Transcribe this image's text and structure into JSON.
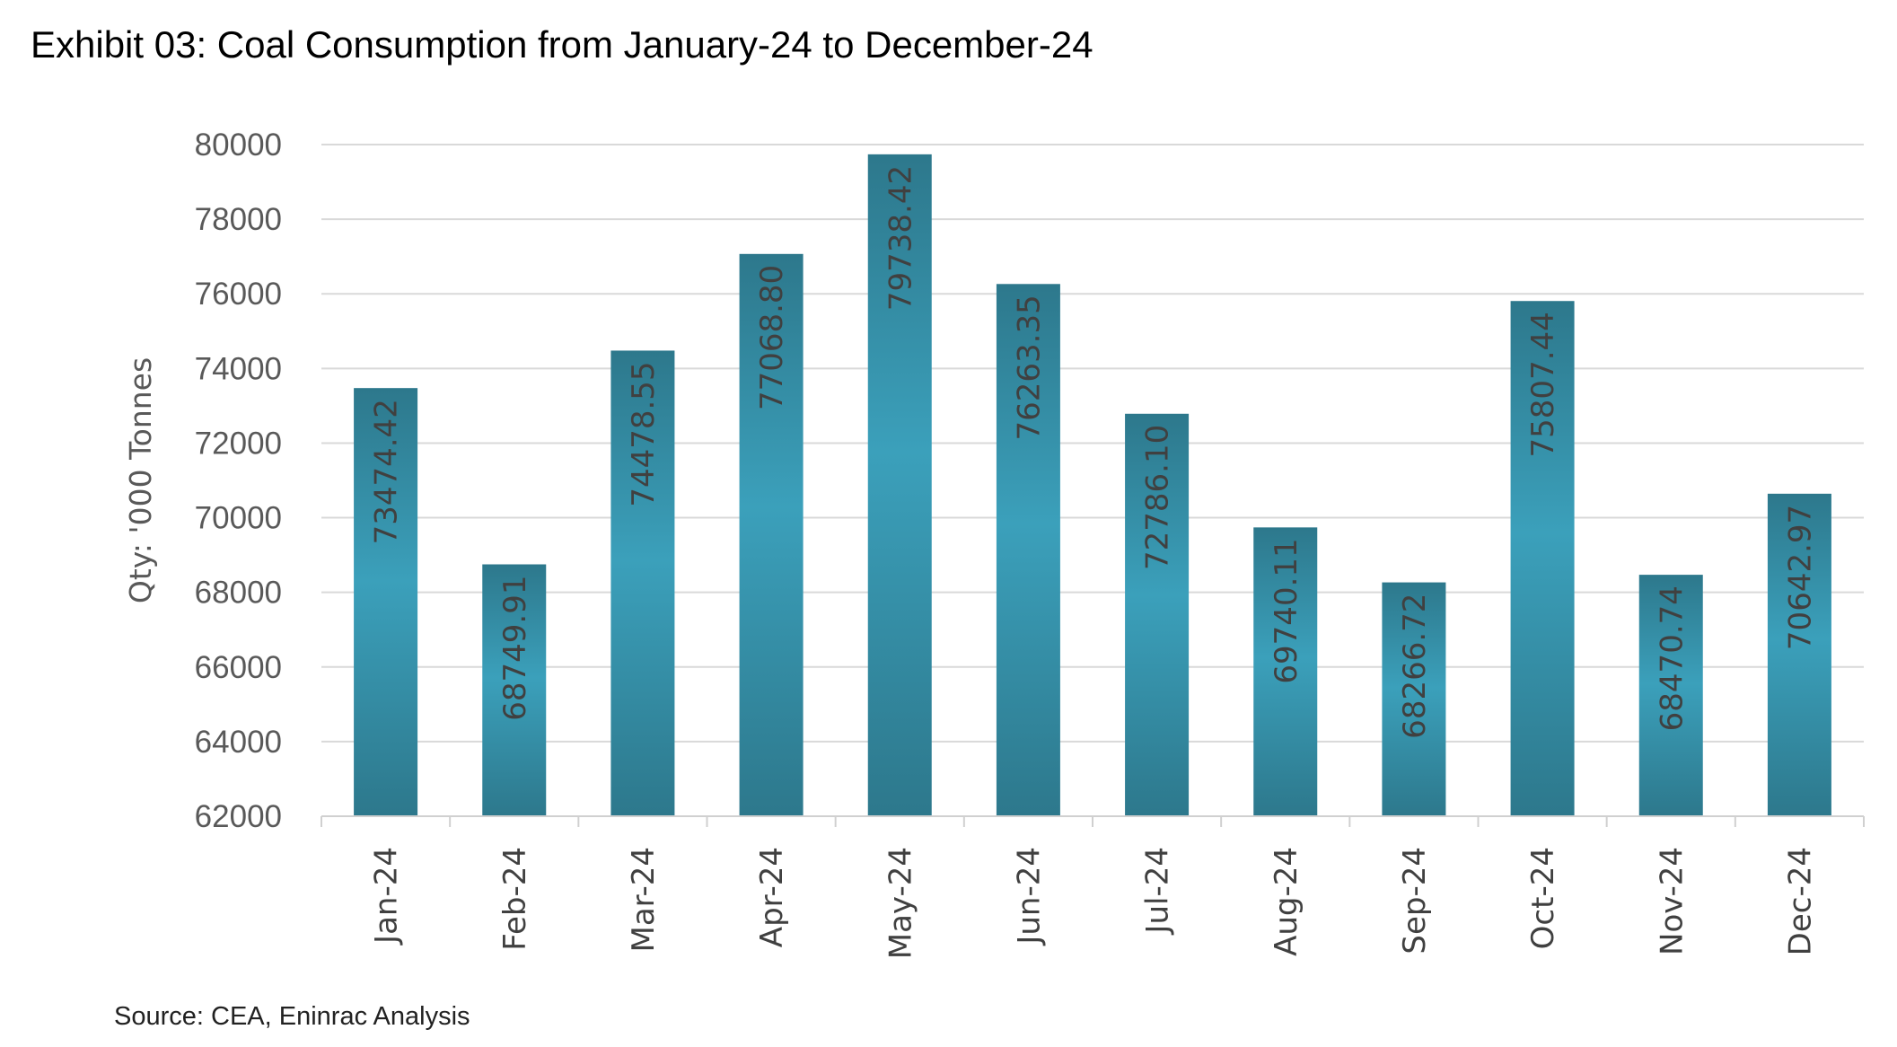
{
  "chart_data": {
    "type": "bar",
    "title": "Exhibit 03: Coal Consumption from January-24 to December-24",
    "ylabel": "Qty: '000 Tonnes",
    "xlabel": "",
    "source": "Source: CEA, Eninrac Analysis",
    "categories": [
      "Jan-24",
      "Feb-24",
      "Mar-24",
      "Apr-24",
      "May-24",
      "Jun-24",
      "Jul-24",
      "Aug-24",
      "Sep-24",
      "Oct-24",
      "Nov-24",
      "Dec-24"
    ],
    "values": [
      73474.42,
      68749.91,
      74478.55,
      77068.8,
      79738.42,
      76263.35,
      72786.1,
      69740.11,
      68266.72,
      75807.44,
      68470.74,
      70642.97
    ],
    "data_labels": [
      "73474.42",
      "68749.91",
      "74478.55",
      "77068.80",
      "79738.42",
      "76263.35",
      "72786.10",
      "69740.11",
      "68266.72",
      "75807.44",
      "68470.74",
      "70642.97"
    ],
    "ylim": [
      62000,
      80000
    ],
    "yticks": [
      62000,
      64000,
      66000,
      68000,
      70000,
      72000,
      74000,
      76000,
      78000,
      80000
    ],
    "grid": true,
    "legend": "none",
    "colors": {
      "bar_dark": "#2d788c",
      "bar_light": "#3ba0bb",
      "label": "#404040",
      "grid": "#d9d9d9"
    }
  }
}
